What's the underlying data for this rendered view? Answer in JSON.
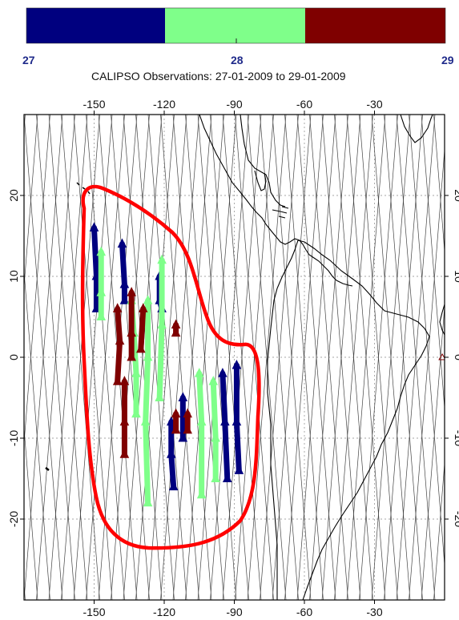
{
  "title": "CALIPSO Observations: 27-01-2009 to 29-01-2009",
  "colorbar": {
    "ticks": [
      "27",
      "28",
      "29"
    ],
    "colors": [
      "#00007f",
      "#7fff8a",
      "#7f0000"
    ]
  },
  "map": {
    "lon_range": [
      -180,
      0
    ],
    "lat_range": [
      -30,
      30
    ],
    "lon_ticks": [
      "-150",
      "-120",
      "-90",
      "-60",
      "-30"
    ],
    "lat_ticks": [
      "20",
      "10",
      "0",
      "-10",
      "-20"
    ],
    "grid": "dashed",
    "region_outline_color": "#ff0000",
    "coastline_color": "#000000",
    "orbit_track_color": "#555555"
  },
  "chart_data": {
    "type": "scatter",
    "xlabel": "",
    "ylabel": "",
    "xlim": [
      -180,
      0
    ],
    "ylim": [
      -30,
      30
    ],
    "series": [
      {
        "color": "#00007f",
        "segments": [
          [
            [
              -150,
              16
            ],
            [
              -149,
              10
            ],
            [
              -149,
              6
            ]
          ],
          [
            [
              -138,
              14
            ],
            [
              -137,
              9
            ],
            [
              -137,
              7
            ]
          ],
          [
            [
              -122,
              10
            ],
            [
              -122,
              7
            ],
            [
              -121,
              6
            ]
          ],
          [
            [
              -117,
              -8
            ],
            [
              -117,
              -12
            ],
            [
              -116,
              -16
            ]
          ],
          [
            [
              -112,
              -5
            ],
            [
              -112,
              -10
            ]
          ],
          [
            [
              -95,
              -2
            ],
            [
              -94,
              -8
            ],
            [
              -93,
              -15
            ]
          ],
          [
            [
              -89,
              -1
            ],
            [
              -89,
              -8
            ],
            [
              -88,
              -14
            ]
          ]
        ]
      },
      {
        "color": "#7fff8a",
        "segments": [
          [
            [
              -147,
              13
            ],
            [
              -147,
              8
            ],
            [
              -147,
              5
            ]
          ],
          [
            [
              -134,
              7
            ],
            [
              -133,
              3
            ],
            [
              -132,
              -2
            ],
            [
              -132,
              -7
            ]
          ],
          [
            [
              -127,
              7
            ],
            [
              -127,
              0
            ],
            [
              -128,
              -8
            ],
            [
              -127,
              -18
            ]
          ],
          [
            [
              -121,
              12
            ],
            [
              -121,
              4
            ],
            [
              -122,
              -5
            ]
          ],
          [
            [
              -105,
              -2
            ],
            [
              -104,
              -8
            ],
            [
              -104,
              -17
            ]
          ],
          [
            [
              -99,
              -3
            ],
            [
              -98,
              -10
            ],
            [
              -98,
              -15
            ]
          ]
        ]
      },
      {
        "color": "#7f0000",
        "segments": [
          [
            [
              -140,
              6
            ],
            [
              -139,
              2
            ],
            [
              -140,
              -3
            ]
          ],
          [
            [
              -134,
              8
            ],
            [
              -134,
              3
            ],
            [
              -134,
              0
            ]
          ],
          [
            [
              -129,
              6
            ],
            [
              -130,
              1
            ]
          ],
          [
            [
              -137,
              -3
            ],
            [
              -137,
              -8
            ],
            [
              -137,
              -12
            ]
          ],
          [
            [
              -115,
              -7
            ],
            [
              -115,
              -9
            ]
          ],
          [
            [
              -110,
              -7
            ],
            [
              -110,
              -9
            ]
          ],
          [
            [
              -115,
              4
            ],
            [
              -115,
              3
            ]
          ]
        ]
      }
    ],
    "isolated_points": [
      {
        "lon": -1,
        "lat": 0,
        "color": "#7f0000"
      }
    ]
  }
}
